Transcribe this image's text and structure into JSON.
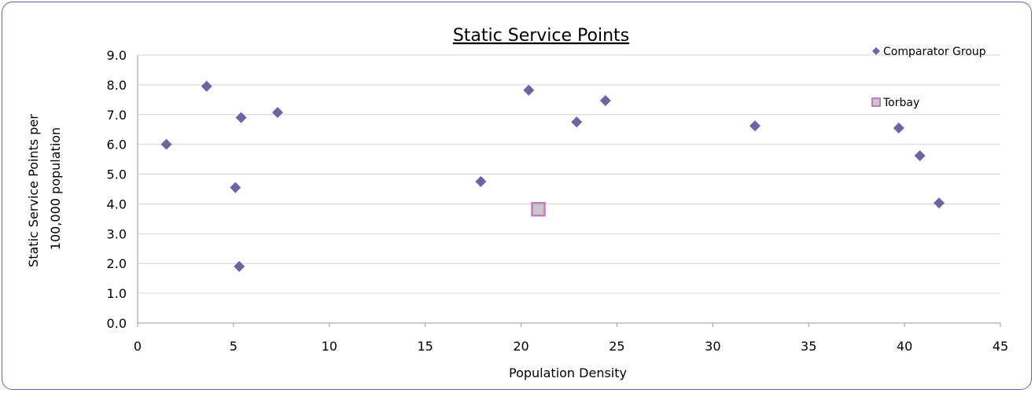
{
  "chart_data": {
    "type": "scatter",
    "title": "Static Service Points",
    "xlabel": "Population Density",
    "ylabel_lines": [
      "Static Service Points per",
      "100,000 population"
    ],
    "xlim": [
      0,
      45
    ],
    "ylim": [
      0,
      9
    ],
    "xticks": [
      0,
      5,
      10,
      15,
      20,
      25,
      30,
      35,
      40,
      45
    ],
    "yticks": [
      "0.0",
      "1.0",
      "2.0",
      "3.0",
      "4.0",
      "5.0",
      "6.0",
      "7.0",
      "8.0",
      "9.0"
    ],
    "grid": "horizontal",
    "legend_position": "top-right",
    "series": [
      {
        "name": "Comparator Group",
        "marker": "diamond",
        "color": "#6a66a3",
        "points": [
          {
            "x": 1.5,
            "y": 6.0
          },
          {
            "x": 3.6,
            "y": 7.95
          },
          {
            "x": 5.1,
            "y": 4.55
          },
          {
            "x": 5.4,
            "y": 6.9
          },
          {
            "x": 5.3,
            "y": 1.9
          },
          {
            "x": 7.3,
            "y": 7.07
          },
          {
            "x": 17.9,
            "y": 4.75
          },
          {
            "x": 20.4,
            "y": 7.82
          },
          {
            "x": 22.9,
            "y": 6.75
          },
          {
            "x": 24.4,
            "y": 7.47
          },
          {
            "x": 32.2,
            "y": 6.62
          },
          {
            "x": 39.7,
            "y": 6.55
          },
          {
            "x": 40.8,
            "y": 5.62
          },
          {
            "x": 41.8,
            "y": 4.03
          }
        ]
      },
      {
        "name": "Torbay",
        "marker": "square",
        "color": "#c8c8c8",
        "border": "#c77bbf",
        "points": [
          {
            "x": 20.9,
            "y": 3.82
          }
        ]
      }
    ]
  }
}
